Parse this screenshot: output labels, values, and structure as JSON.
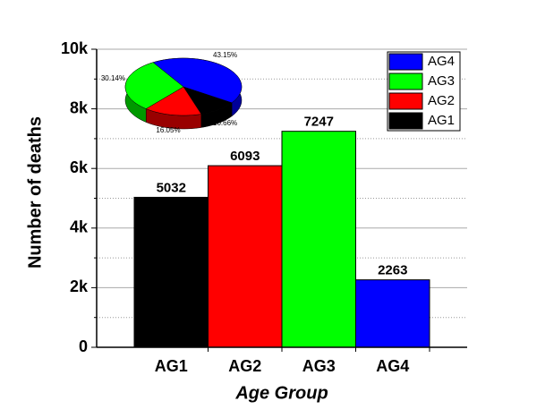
{
  "chart_data": [
    {
      "type": "bar",
      "x_label": "Age Group",
      "y_label": "Number of deaths",
      "categories": [
        "AG1",
        "AG2",
        "AG3",
        "AG4"
      ],
      "values": [
        5032,
        6093,
        7247,
        2263
      ],
      "colors": [
        "#000000",
        "#ff0000",
        "#00ff00",
        "#0000ff"
      ],
      "ylim": [
        0,
        10000
      ],
      "yticks": [
        0,
        {
          "value": 2000,
          "label": "2k"
        },
        {
          "value": 4000,
          "label": "4k"
        },
        {
          "value": 6000,
          "label": "6k"
        },
        {
          "value": 8000,
          "label": "8k"
        },
        {
          "value": 10000,
          "label": "10k"
        }
      ],
      "minor_yticks": [
        1000,
        3000,
        5000,
        7000,
        9000
      ],
      "grid": true,
      "legend": "upper right"
    },
    {
      "type": "pie",
      "categories": [
        "AG4",
        "AG1",
        "AG2",
        "AG3"
      ],
      "values": [
        43.15,
        10.66,
        16.05,
        30.14
      ],
      "value_labels": [
        "43.15%",
        "10.66%",
        "16.05%",
        "30.14%"
      ],
      "colors": [
        "#0000ff",
        "#000000",
        "#ff0000",
        "#00ff00"
      ]
    }
  ]
}
